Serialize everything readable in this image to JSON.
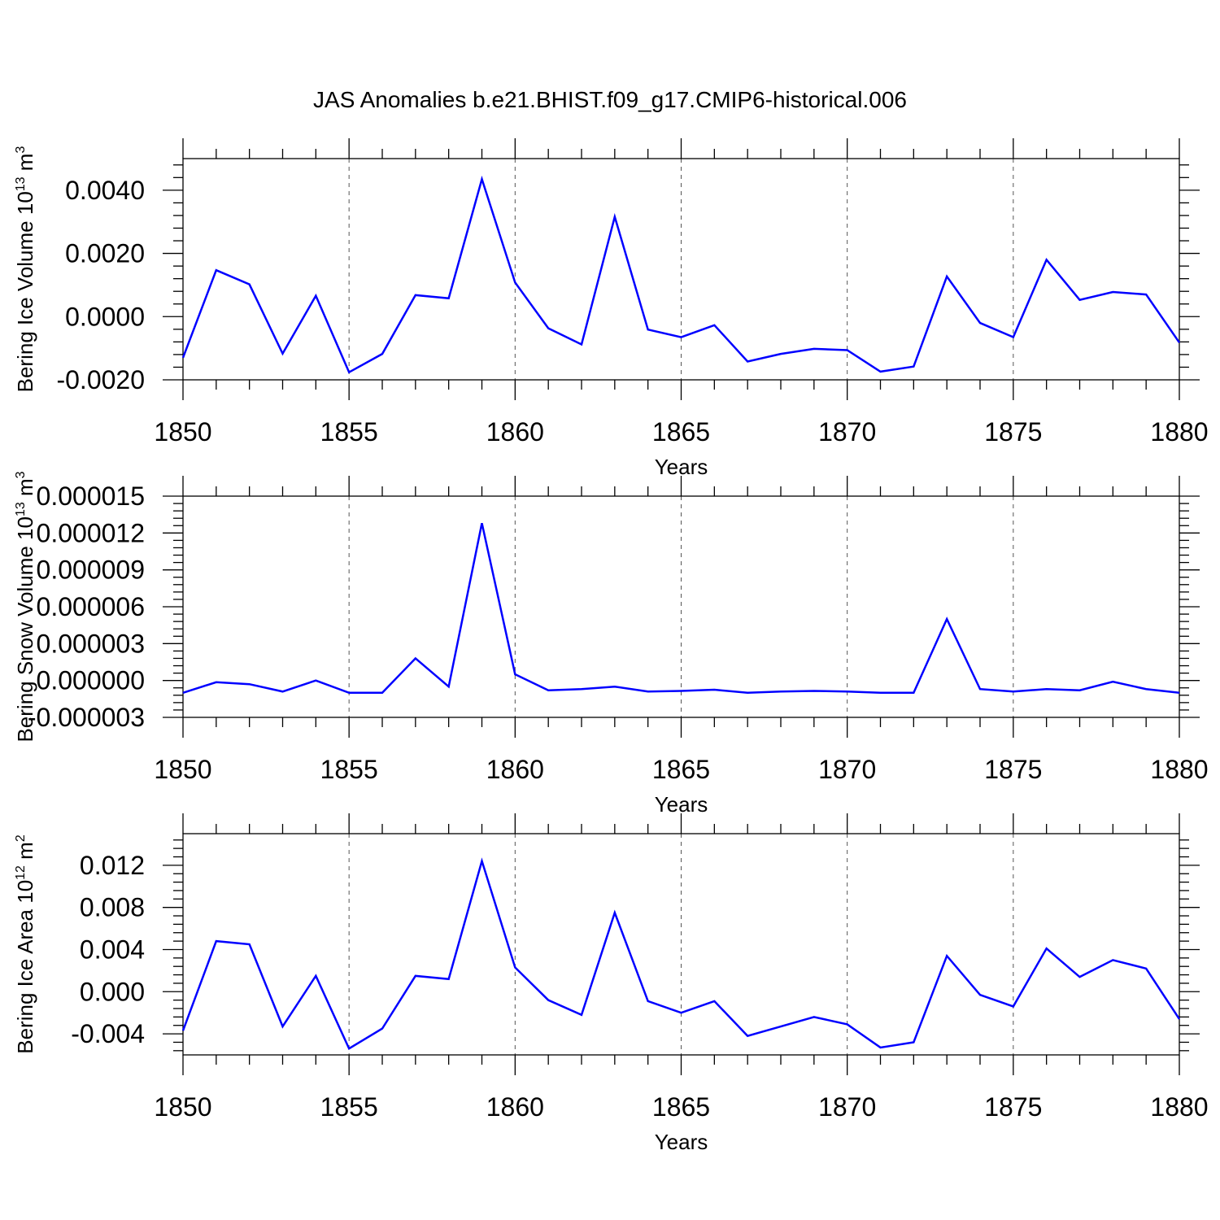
{
  "chart_data": {
    "title": "JAS Anomalies b.e21.BHIST.f09_g17.CMIP6-historical.006",
    "panels": [
      {
        "type": "line",
        "ylabel": "Bering Ice Volume 10",
        "ylabel_sup": "13",
        "ylabel_unit": "m",
        "ylabel_unit_sup": "3",
        "xlabel": "Years",
        "xlim": [
          1850,
          1880
        ],
        "ylim": [
          -0.002,
          0.005
        ],
        "yticks": [
          -0.002,
          0.0,
          0.002,
          0.004
        ],
        "ytick_labels": [
          "-0.0020",
          "0.0000",
          "0.0020",
          "0.0040"
        ],
        "xticks": [
          1850,
          1855,
          1860,
          1865,
          1870,
          1875,
          1880
        ],
        "xtick_labels": [
          "1850",
          "1855",
          "1860",
          "1865",
          "1870",
          "1875",
          "1880"
        ],
        "color": "#0000ff",
        "x": [
          1850,
          1851,
          1852,
          1853,
          1854,
          1855,
          1856,
          1857,
          1858,
          1859,
          1860,
          1861,
          1862,
          1863,
          1864,
          1865,
          1866,
          1867,
          1868,
          1869,
          1870,
          1871,
          1872,
          1873,
          1874,
          1875,
          1876,
          1877,
          1878,
          1879,
          1880
        ],
        "y": [
          -0.0013,
          0.00147,
          0.00102,
          -0.00117,
          0.00066,
          -0.00176,
          -0.00118,
          0.00068,
          0.00058,
          0.00435,
          0.00108,
          -0.00037,
          -0.00088,
          0.00316,
          -0.00041,
          -0.00065,
          -0.00027,
          -0.00142,
          -0.00118,
          -0.00102,
          -0.00106,
          -0.00174,
          -0.00158,
          0.00127,
          -0.0002,
          -0.00065,
          0.0018,
          0.00053,
          0.00078,
          0.0007,
          -0.00082
        ]
      },
      {
        "type": "line",
        "ylabel": "Bering Snow Volume 10",
        "ylabel_sup": "13",
        "ylabel_unit": "m",
        "ylabel_unit_sup": "3",
        "xlabel": "Years",
        "xlim": [
          1850,
          1880
        ],
        "ylim": [
          -3e-06,
          1.5e-05
        ],
        "yticks": [
          -3e-06,
          0.0,
          3e-06,
          6e-06,
          9e-06,
          1.2e-05,
          1.5e-05
        ],
        "ytick_labels": [
          "-0.000003",
          "0.000000",
          "0.000003",
          "0.000006",
          "0.000009",
          "0.000012",
          "0.000015"
        ],
        "xticks": [
          1850,
          1855,
          1860,
          1865,
          1870,
          1875,
          1880
        ],
        "xtick_labels": [
          "1850",
          "1855",
          "1860",
          "1865",
          "1870",
          "1875",
          "1880"
        ],
        "color": "#0000ff",
        "x": [
          1850,
          1851,
          1852,
          1853,
          1854,
          1855,
          1856,
          1857,
          1858,
          1859,
          1860,
          1861,
          1862,
          1863,
          1864,
          1865,
          1866,
          1867,
          1868,
          1869,
          1870,
          1871,
          1872,
          1873,
          1874,
          1875,
          1876,
          1877,
          1878,
          1879,
          1880
        ],
        "y": [
          -1e-06,
          -1.4e-07,
          -3e-07,
          -9e-07,
          0.0,
          -1e-06,
          -1e-06,
          1.8e-06,
          -5e-07,
          1.28e-05,
          5e-07,
          -8e-07,
          -7e-07,
          -5e-07,
          -9e-07,
          -8.5e-07,
          -7.5e-07,
          -1e-06,
          -9e-07,
          -8.5e-07,
          -9e-07,
          -1e-06,
          -1e-06,
          5e-06,
          -7e-07,
          -9e-07,
          -7e-07,
          -8e-07,
          -1e-07,
          -7e-07,
          -1e-06
        ]
      },
      {
        "type": "line",
        "ylabel": "Bering Ice Area 10",
        "ylabel_sup": "12",
        "ylabel_unit": "m",
        "ylabel_unit_sup": "2",
        "xlabel": "Years",
        "xlim": [
          1850,
          1880
        ],
        "ylim": [
          -0.006,
          0.015
        ],
        "yticks": [
          -0.004,
          0.0,
          0.004,
          0.008,
          0.012
        ],
        "ytick_labels": [
          "-0.004",
          "0.000",
          "0.004",
          "0.008",
          "0.012"
        ],
        "xticks": [
          1850,
          1855,
          1860,
          1865,
          1870,
          1875,
          1880
        ],
        "xtick_labels": [
          "1850",
          "1855",
          "1860",
          "1865",
          "1870",
          "1875",
          "1880"
        ],
        "color": "#0000ff",
        "x": [
          1850,
          1851,
          1852,
          1853,
          1854,
          1855,
          1856,
          1857,
          1858,
          1859,
          1860,
          1861,
          1862,
          1863,
          1864,
          1865,
          1866,
          1867,
          1868,
          1869,
          1870,
          1871,
          1872,
          1873,
          1874,
          1875,
          1876,
          1877,
          1878,
          1879,
          1880
        ],
        "y": [
          -0.0037,
          0.0048,
          0.0045,
          -0.0033,
          0.0015,
          -0.0054,
          -0.0035,
          0.0015,
          0.0012,
          0.0124,
          0.0023,
          -0.0008,
          -0.0022,
          0.0075,
          -0.0009,
          -0.002,
          -0.0009,
          -0.0042,
          -0.0033,
          -0.0024,
          -0.0031,
          -0.0053,
          -0.0048,
          0.0034,
          -0.0003,
          -0.0014,
          0.0041,
          0.0014,
          0.003,
          0.0022,
          -0.0026
        ]
      }
    ]
  }
}
